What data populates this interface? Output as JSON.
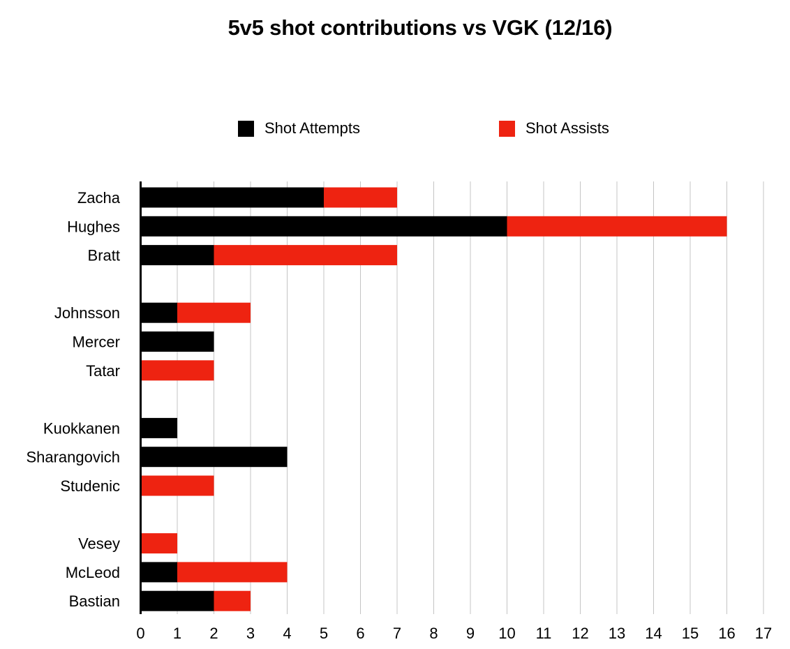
{
  "chart_data": {
    "type": "bar",
    "orientation": "horizontal",
    "stacked": true,
    "title": "5v5 shot contributions vs VGK (12/16)",
    "xlabel": "",
    "ylabel": "",
    "xlim": [
      0,
      17
    ],
    "x_ticks": [
      "0",
      "1",
      "2",
      "3",
      "4",
      "5",
      "6",
      "7",
      "8",
      "9",
      "10",
      "11",
      "12",
      "13",
      "14",
      "15",
      "16",
      "17"
    ],
    "grid": "vertical",
    "legend_position": "top",
    "groups": [
      [
        "Zacha",
        "Hughes",
        "Bratt"
      ],
      [
        "Johnsson",
        "Mercer",
        "Tatar"
      ],
      [
        "Kuokkanen",
        "Sharangovich",
        "Studenic"
      ],
      [
        "Vesey",
        "McLeod",
        "Bastian"
      ]
    ],
    "categories": [
      "Zacha",
      "Hughes",
      "Bratt",
      "Johnsson",
      "Mercer",
      "Tatar",
      "Kuokkanen",
      "Sharangovich",
      "Studenic",
      "Vesey",
      "McLeod",
      "Bastian"
    ],
    "series": [
      {
        "name": "Shot Attempts",
        "color": "#000000",
        "values": [
          5,
          10,
          2,
          1,
          2,
          0,
          1,
          4,
          0,
          0,
          1,
          2
        ]
      },
      {
        "name": "Shot Assists",
        "color": "#ee2311",
        "values": [
          2,
          6,
          5,
          2,
          0,
          2,
          0,
          0,
          2,
          1,
          3,
          1
        ]
      }
    ]
  }
}
